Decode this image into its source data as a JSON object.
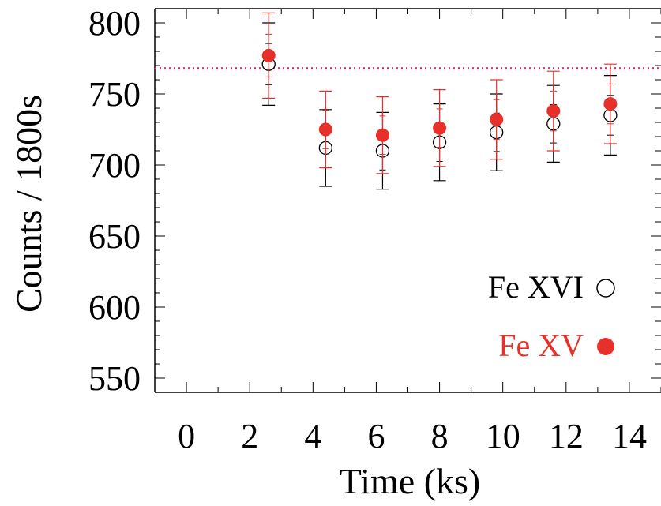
{
  "chart_data": {
    "type": "scatter",
    "xlabel": "Time (ks)",
    "ylabel": "Counts / 1800s",
    "xlim": [
      -1,
      15
    ],
    "ylim": [
      540,
      810
    ],
    "xticks": [
      0,
      2,
      4,
      6,
      8,
      10,
      12,
      14
    ],
    "yticks": [
      550,
      600,
      650,
      700,
      750,
      800
    ],
    "reference_line": {
      "y": 768,
      "color": "#e0306e",
      "style": "dotted"
    },
    "legend_position": "center-right",
    "series": [
      {
        "name": "Fe XVI",
        "marker": "open-circle",
        "color": "#000000",
        "x": [
          2.6,
          4.4,
          6.2,
          8.0,
          9.8,
          11.6,
          13.4
        ],
        "y": [
          771,
          712,
          710,
          716,
          723,
          729,
          735
        ],
        "err": [
          29,
          27,
          27,
          27,
          27,
          27,
          28
        ]
      },
      {
        "name": "Fe XV",
        "marker": "filled-circle",
        "color": "#e8302a",
        "x": [
          2.6,
          4.4,
          6.2,
          8.0,
          9.8,
          11.6,
          13.4
        ],
        "y": [
          777,
          725,
          721,
          726,
          732,
          738,
          743
        ],
        "err": [
          30,
          27,
          27,
          27,
          28,
          28,
          28
        ]
      }
    ]
  }
}
